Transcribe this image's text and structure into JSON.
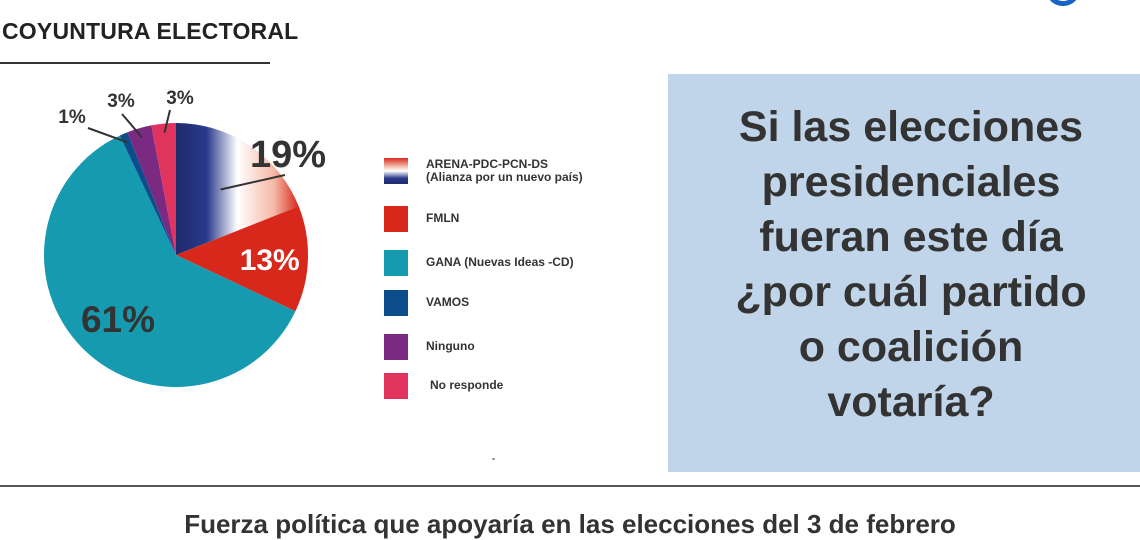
{
  "header": {
    "title": "COYUNTURA ELECTORAL"
  },
  "question": {
    "lines": [
      "Si las elecciones",
      "presidenciales",
      "fueran este día",
      "¿por cuál partido",
      "o coalición",
      "votaría?"
    ]
  },
  "caption": "Fuerza política que apoyaría en las elecciones del 3 de febrero",
  "colors": {
    "arena_dark": "#1f2a6b",
    "arena_light": "#ffffff",
    "arena_red": "#d8281c",
    "fmln": "#d8281c",
    "gana": "#159ab0",
    "vamos": "#0d4d8c",
    "ninguno": "#7b2a82",
    "no_responde": "#e0345f",
    "question_bg": "#c0d5e9",
    "logo": "#1a63c4"
  },
  "chart_data": {
    "type": "pie",
    "title": "",
    "slices": [
      {
        "label": "ARENA-PDC-PCN-DS (Alianza por un nuevo país)",
        "legend_lines": [
          "ARENA-PDC-PCN-DS",
          "(Alianza por un nuevo país)"
        ],
        "value": 19,
        "display": "19%",
        "color": "gradient"
      },
      {
        "label": "FMLN",
        "legend_lines": [
          "FMLN"
        ],
        "value": 13,
        "display": "13%",
        "color": "#d8281c"
      },
      {
        "label": "GANA (Nuevas Ideas -CD)",
        "legend_lines": [
          "GANA (Nuevas Ideas -CD)"
        ],
        "value": 61,
        "display": "61%",
        "color": "#159ab0"
      },
      {
        "label": "VAMOS",
        "legend_lines": [
          "VAMOS"
        ],
        "value": 1,
        "display": "1%",
        "color": "#0d4d8c"
      },
      {
        "label": "Ninguno",
        "legend_lines": [
          "Ninguno"
        ],
        "value": 3,
        "display": "3%",
        "color": "#7b2a82"
      },
      {
        "label": "No responde",
        "legend_lines": [
          "No responde"
        ],
        "value": 3,
        "display": "3%",
        "color": "#e0345f"
      }
    ],
    "legend_position": "right"
  }
}
